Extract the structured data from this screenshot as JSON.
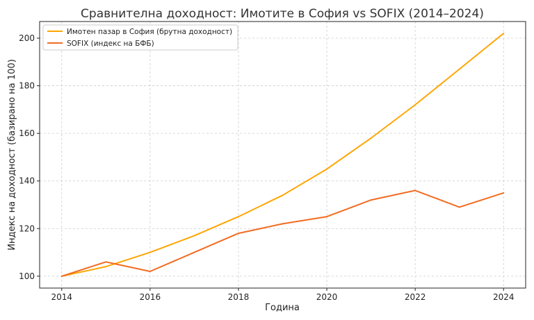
{
  "chart_data": {
    "type": "line",
    "title": "Сравнителна доходност: Имотите в София vs SOFIX (2014–2024)",
    "xlabel": "Година",
    "ylabel": "Индекс на доходност (базирано на 100)",
    "xlim": [
      2013.5,
      2024.5
    ],
    "ylim": [
      95,
      207
    ],
    "x_ticks": [
      2014,
      2016,
      2018,
      2020,
      2022,
      2024
    ],
    "y_ticks": [
      100,
      120,
      140,
      160,
      180,
      200
    ],
    "grid": true,
    "legend_position": "top-left",
    "x": [
      2014,
      2015,
      2016,
      2017,
      2018,
      2019,
      2020,
      2021,
      2022,
      2023,
      2024
    ],
    "series": [
      {
        "name": "Имотен пазар в София (брутна доходност)",
        "color": "#FFA500",
        "values": [
          100,
          104,
          110,
          117,
          125,
          134,
          145,
          158,
          172,
          187,
          202
        ]
      },
      {
        "name": "SOFIX (индекс на БФБ)",
        "color": "#F26B21",
        "values": [
          100,
          106,
          102,
          110,
          118,
          122,
          125,
          132,
          136,
          129,
          135
        ]
      }
    ]
  }
}
